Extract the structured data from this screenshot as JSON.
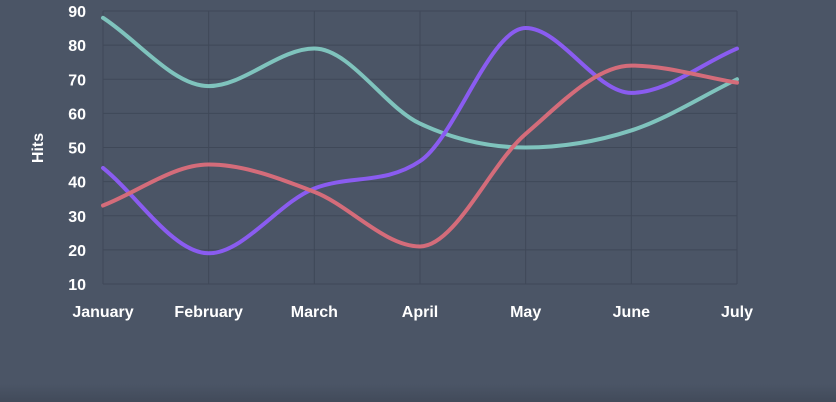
{
  "chart_data": {
    "type": "line",
    "categories": [
      "January",
      "February",
      "March",
      "April",
      "May",
      "June",
      "July"
    ],
    "series": [
      {
        "values": [
          88,
          68,
          79,
          57,
          50,
          55,
          70
        ],
        "color": "#7fc3bd"
      },
      {
        "values": [
          44,
          19,
          38,
          46,
          85,
          66,
          79
        ],
        "color": "#8a5cf0"
      },
      {
        "values": [
          33,
          45,
          37,
          21,
          54,
          74,
          69
        ],
        "color": "#d46c7a"
      }
    ],
    "title": "",
    "xlabel": "",
    "ylabel": "Hits",
    "ylim": [
      10,
      90
    ],
    "yticks": [
      10,
      20,
      30,
      40,
      50,
      60,
      70,
      80,
      90
    ],
    "grid": true,
    "curve": "smooth"
  }
}
